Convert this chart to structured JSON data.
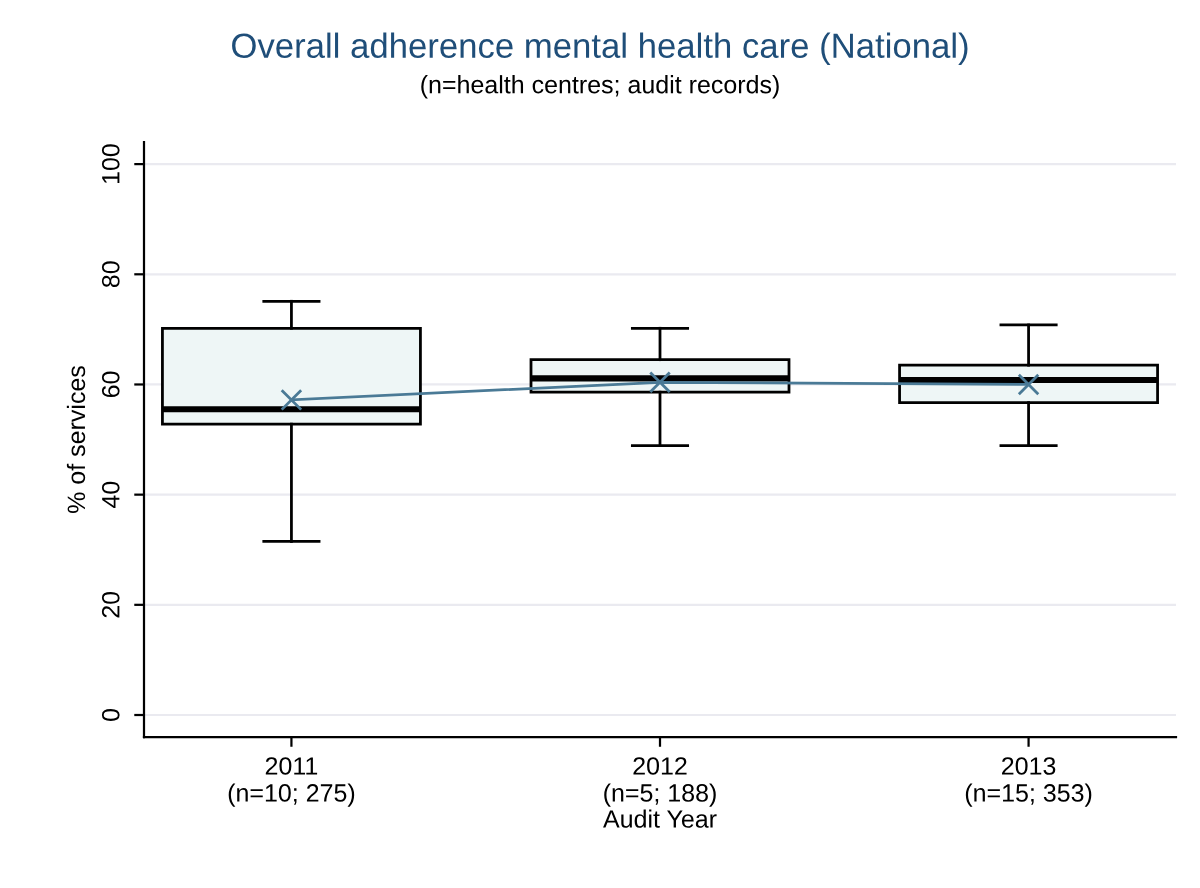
{
  "chart_data": {
    "type": "box",
    "title": "Overall adherence mental health care (National)",
    "subtitle": "(n=health centres; audit records)",
    "xlabel": "Audit Year",
    "ylabel": "% of services",
    "categories": [
      "2011\n(n=10; 275)",
      "2012\n(n=5; 188)",
      "2013\n(n=15; 353)"
    ],
    "series": [
      {
        "color": "#eef6f6",
        "boxes": [
          {
            "low": 31.5,
            "q1": 52.8,
            "median": 55.5,
            "q3": 70.2,
            "high": 75.1
          },
          {
            "low": 48.9,
            "q1": 58.6,
            "median": 61.1,
            "q3": 64.5,
            "high": 70.2
          },
          {
            "low": 48.9,
            "q1": 56.7,
            "median": 60.8,
            "q3": 63.5,
            "high": 70.8
          }
        ]
      },
      {
        "type": "line",
        "color": "#4a7a96",
        "marker": "cross",
        "values": [
          57.2,
          60.4,
          60.0
        ]
      }
    ],
    "ylim": [
      -4,
      104
    ],
    "yticks": [
      0,
      20,
      40,
      60,
      80,
      100
    ],
    "grid": "y"
  }
}
